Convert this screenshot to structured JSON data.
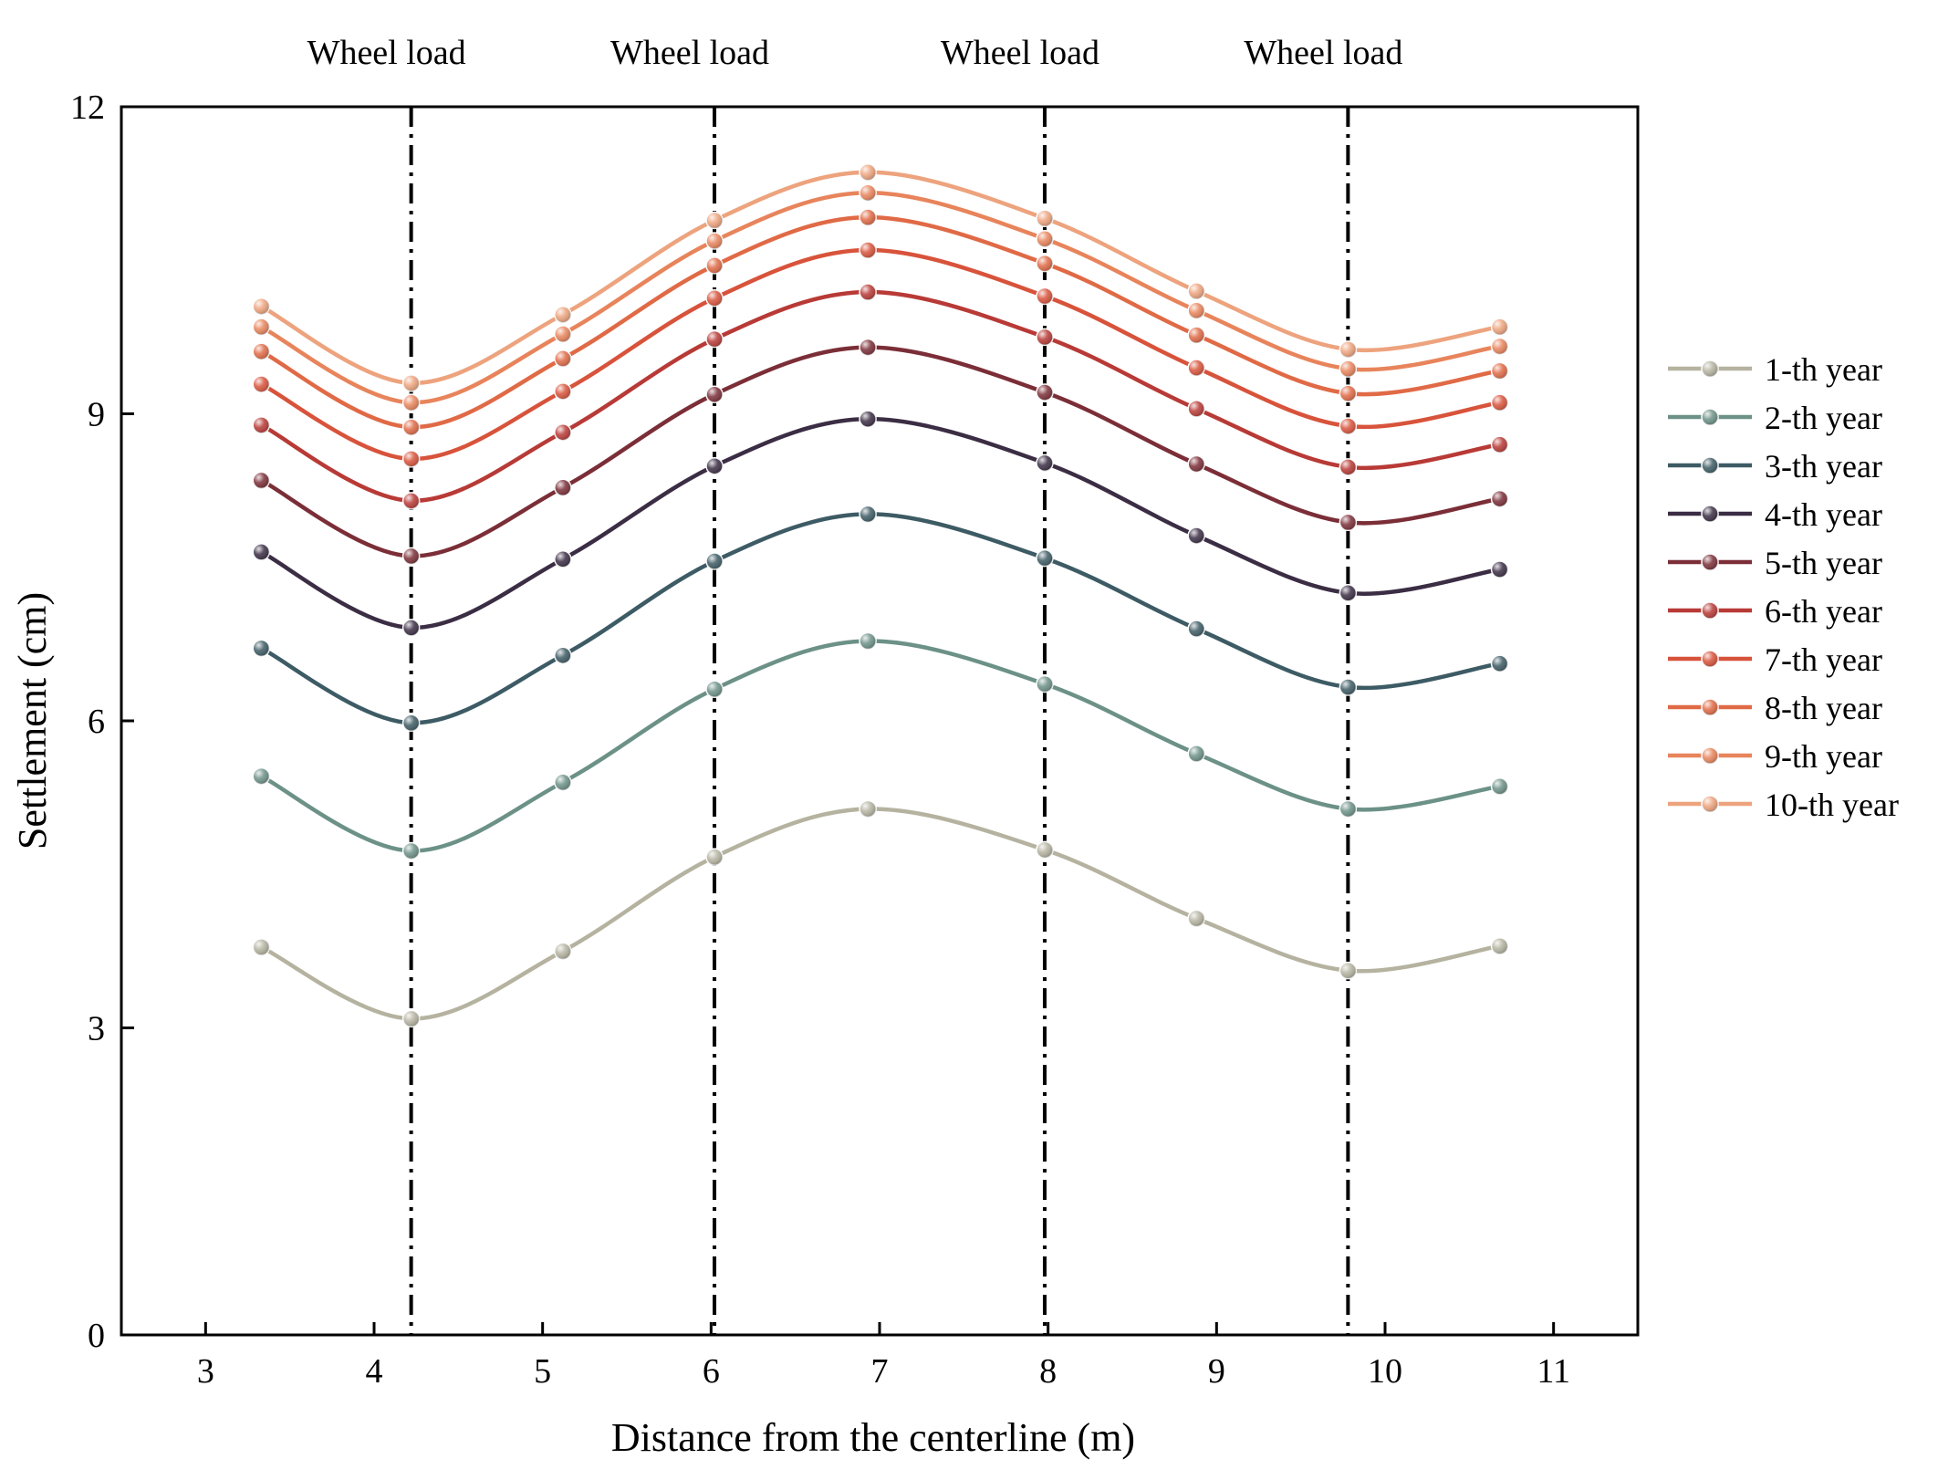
{
  "chart_data": {
    "type": "line",
    "title": "",
    "xlabel": "Distance from the centerline (m)",
    "ylabel": "Settlement (cm)",
    "xlim": [
      2.5,
      11.5
    ],
    "ylim": [
      0,
      12
    ],
    "xticks": [
      3,
      4,
      5,
      6,
      7,
      8,
      9,
      10,
      11
    ],
    "yticks": [
      0,
      3,
      6,
      9,
      12
    ],
    "grid": false,
    "legend_position": "right",
    "x": [
      3.33,
      4.22,
      5.12,
      6.02,
      6.93,
      7.98,
      8.88,
      9.78,
      10.68
    ],
    "wheel_loads": [
      {
        "x": 4.22,
        "label": "Wheel load"
      },
      {
        "x": 6.02,
        "label": "Wheel load"
      },
      {
        "x": 7.98,
        "label": "Wheel load"
      },
      {
        "x": 9.78,
        "label": "Wheel load"
      }
    ],
    "series": [
      {
        "name": "1-th year",
        "color": "#b5b3a0",
        "values": [
          3.79,
          3.09,
          3.75,
          4.67,
          5.14,
          4.74,
          4.07,
          3.56,
          3.8
        ]
      },
      {
        "name": "2-th year",
        "color": "#6c9187",
        "values": [
          5.46,
          4.73,
          5.4,
          6.31,
          6.78,
          6.36,
          5.68,
          5.14,
          5.36
        ]
      },
      {
        "name": "3-th year",
        "color": "#3d5b64",
        "values": [
          6.71,
          5.98,
          6.64,
          7.56,
          8.02,
          7.59,
          6.9,
          6.33,
          6.56
        ]
      },
      {
        "name": "4-th year",
        "color": "#3b2d44",
        "values": [
          7.65,
          6.91,
          7.58,
          8.49,
          8.95,
          8.52,
          7.81,
          7.25,
          7.48
        ]
      },
      {
        "name": "5-th year",
        "color": "#7b2e37",
        "values": [
          8.35,
          7.61,
          8.28,
          9.19,
          9.65,
          9.21,
          8.51,
          7.94,
          8.17
        ]
      },
      {
        "name": "6-th year",
        "color": "#b83a36",
        "values": [
          8.89,
          8.15,
          8.82,
          9.73,
          10.19,
          9.75,
          9.05,
          8.48,
          8.7
        ]
      },
      {
        "name": "7-th year",
        "color": "#d8533b",
        "values": [
          9.29,
          8.56,
          9.22,
          10.13,
          10.6,
          10.15,
          9.45,
          8.88,
          9.11
        ]
      },
      {
        "name": "8-th year",
        "color": "#e06a46",
        "values": [
          9.61,
          8.87,
          9.54,
          10.45,
          10.92,
          10.47,
          9.77,
          9.2,
          9.42
        ]
      },
      {
        "name": "9-th year",
        "color": "#e8845b",
        "values": [
          9.85,
          9.11,
          9.78,
          10.69,
          11.16,
          10.71,
          10.01,
          9.44,
          9.66
        ]
      },
      {
        "name": "10-th year",
        "color": "#eda37d",
        "values": [
          10.05,
          9.3,
          9.97,
          10.89,
          11.36,
          10.91,
          10.2,
          9.63,
          9.85
        ]
      }
    ]
  }
}
